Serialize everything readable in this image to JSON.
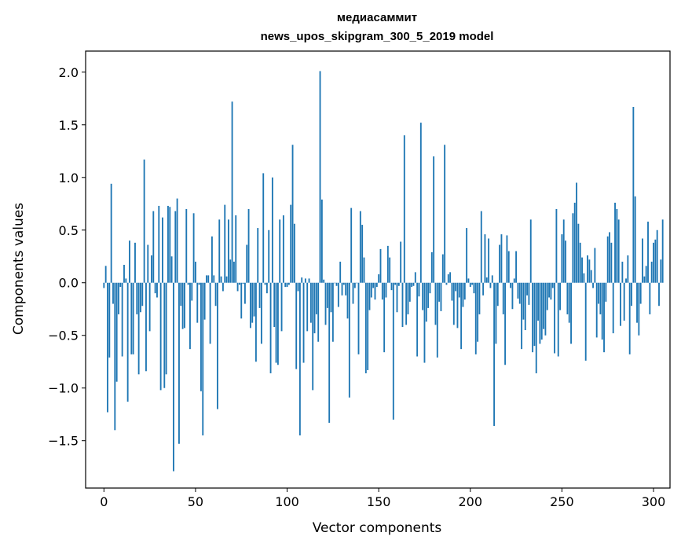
{
  "chart_data": {
    "type": "bar",
    "title": "медиасаммит",
    "subtitle": "news_upos_skipgram_300_5_2019 model",
    "xlabel": "Vector components",
    "ylabel": "Components values",
    "xlim": [
      -10,
      309
    ],
    "ylim": [
      -1.95,
      2.2
    ],
    "xticks": [
      0,
      50,
      100,
      150,
      200,
      250,
      300
    ],
    "yticks": [
      -1.5,
      -1.0,
      -0.5,
      0.0,
      0.5,
      1.0,
      1.5,
      2.0
    ],
    "xtick_labels": [
      "0",
      "50",
      "100",
      "150",
      "200",
      "250",
      "300"
    ],
    "ytick_labels": [
      "−1.5",
      "−1.0",
      "−0.5",
      "0.0",
      "0.5",
      "1.0",
      "1.5",
      "2.0"
    ],
    "bar_color": "#1f77b4",
    "values": [
      -0.05,
      0.16,
      -1.23,
      -0.71,
      0.94,
      -0.2,
      -1.4,
      -0.94,
      -0.3,
      -0.04,
      -0.7,
      0.17,
      0.04,
      -1.13,
      0.4,
      -0.68,
      -0.68,
      0.38,
      -0.3,
      -0.87,
      -0.28,
      -0.22,
      1.17,
      -0.84,
      0.36,
      -0.46,
      0.26,
      0.68,
      -0.1,
      -0.14,
      0.73,
      -1.02,
      0.62,
      -1.0,
      -0.87,
      0.73,
      0.72,
      0.25,
      -1.79,
      0.68,
      0.8,
      -1.53,
      -0.22,
      -0.44,
      -0.43,
      0.7,
      -0.02,
      -0.63,
      -0.17,
      0.66,
      0.2,
      -0.38,
      -0.02,
      -1.03,
      -1.45,
      -0.35,
      0.07,
      0.07,
      -0.58,
      0.44,
      0.07,
      -0.22,
      -1.2,
      0.6,
      0.06,
      -0.08,
      0.74,
      0.06,
      0.6,
      0.22,
      1.72,
      0.2,
      0.64,
      -0.08,
      -0.02,
      -0.34,
      -0.01,
      -0.2,
      0.36,
      0.7,
      -0.43,
      -0.38,
      -0.32,
      -0.75,
      0.52,
      -0.24,
      -0.58,
      1.04,
      -0.02,
      -0.1,
      0.5,
      -0.86,
      1.0,
      -0.42,
      -0.76,
      -0.78,
      0.6,
      -0.46,
      0.64,
      -0.04,
      -0.04,
      -0.02,
      0.74,
      1.31,
      0.56,
      -0.82,
      -0.08,
      -1.45,
      0.05,
      -0.76,
      0.04,
      -0.46,
      0.04,
      -0.38,
      -1.02,
      -0.48,
      -0.3,
      -0.56,
      2.01,
      0.79,
      0.03,
      -0.4,
      -0.24,
      -1.33,
      -0.28,
      -0.56,
      0.0,
      -0.03,
      -0.23,
      0.2,
      -0.12,
      -0.02,
      -0.12,
      -0.34,
      -1.09,
      0.71,
      -0.2,
      -0.05,
      0.0,
      -0.68,
      0.68,
      0.55,
      0.24,
      -0.86,
      -0.83,
      -0.26,
      -0.14,
      -0.05,
      -0.16,
      -0.04,
      0.08,
      0.32,
      -0.16,
      -0.66,
      -0.14,
      0.35,
      0.24,
      -0.07,
      -1.3,
      -0.02,
      -0.28,
      -0.03,
      0.39,
      -0.42,
      1.4,
      -0.4,
      -0.3,
      -0.18,
      -0.04,
      -0.03,
      0.1,
      -0.7,
      -0.13,
      1.52,
      -0.26,
      -0.76,
      -0.37,
      -0.24,
      -0.1,
      0.29,
      1.2,
      -0.4,
      -0.71,
      -0.18,
      -0.27,
      0.27,
      1.31,
      -0.02,
      0.08,
      0.1,
      -0.17,
      -0.4,
      -0.08,
      -0.43,
      -0.14,
      -0.63,
      -0.23,
      -0.16,
      0.52,
      0.04,
      -0.04,
      -0.02,
      -0.1,
      -0.68,
      -0.56,
      -0.3,
      0.68,
      -0.12,
      0.46,
      0.05,
      0.42,
      -0.05,
      0.07,
      -1.36,
      -0.58,
      -0.22,
      0.36,
      0.46,
      -0.3,
      -0.78,
      0.45,
      0.3,
      -0.05,
      -0.25,
      0.04,
      0.3,
      -0.15,
      -0.2,
      -0.63,
      -0.35,
      -0.45,
      -0.12,
      -0.21,
      0.6,
      -0.66,
      -0.6,
      -0.86,
      -0.36,
      -0.58,
      -0.54,
      -0.44,
      -0.5,
      -0.26,
      -0.14,
      -0.16,
      -0.05,
      -0.67,
      0.7,
      -0.7,
      -0.26,
      0.46,
      0.6,
      0.4,
      -0.3,
      -0.38,
      -0.58,
      0.66,
      0.76,
      0.95,
      0.56,
      0.38,
      0.24,
      0.09,
      -0.74,
      0.26,
      0.22,
      0.12,
      -0.05,
      0.33,
      -0.52,
      -0.2,
      -0.3,
      -0.54,
      -0.66,
      -0.18,
      0.44,
      0.48,
      0.38,
      -0.48,
      0.76,
      0.7,
      0.6,
      -0.41,
      0.2,
      -0.36,
      0.04,
      0.26,
      -0.68,
      -0.22,
      1.67,
      0.82,
      -0.38,
      -0.5,
      -0.2,
      0.42,
      0.06,
      0.16,
      0.58,
      -0.3,
      0.2,
      0.38,
      0.41,
      0.5,
      -0.22,
      0.22,
      0.6
    ]
  }
}
